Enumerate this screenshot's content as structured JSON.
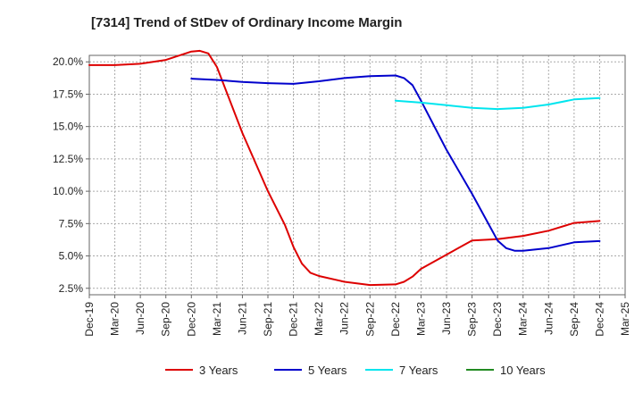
{
  "chart_data": {
    "type": "line",
    "title": "[7314]  Trend of StDev of Ordinary Income Margin",
    "xlabel": "",
    "ylabel": "",
    "x_ticks": [
      "Dec-19",
      "Mar-20",
      "Jun-20",
      "Sep-20",
      "Dec-20",
      "Mar-21",
      "Jun-21",
      "Sep-21",
      "Dec-21",
      "Mar-22",
      "Jun-22",
      "Sep-22",
      "Dec-22",
      "Mar-23",
      "Jun-23",
      "Sep-23",
      "Dec-23",
      "Mar-24",
      "Jun-24",
      "Sep-24",
      "Dec-24",
      "Mar-25"
    ],
    "y_ticks": [
      "2.5%",
      "5.0%",
      "7.5%",
      "10.0%",
      "12.5%",
      "15.0%",
      "17.5%",
      "20.0%"
    ],
    "ylim": [
      2.0,
      20.5
    ],
    "grid": true,
    "legend_position": "bottom",
    "series": [
      {
        "name": "3 Years",
        "color": "#dd0000",
        "points": [
          [
            "Dec-19",
            19.75
          ],
          [
            "Mar-20",
            19.75
          ],
          [
            "Jun-20",
            19.85
          ],
          [
            "Sep-20",
            20.15
          ],
          [
            "Dec-20",
            20.8
          ],
          [
            "Jan-21",
            20.85
          ],
          [
            "Feb-21",
            20.65
          ],
          [
            "Mar-21",
            19.6
          ],
          [
            "Jun-21",
            14.5
          ],
          [
            "Sep-21",
            10.0
          ],
          [
            "Nov-21",
            7.4
          ],
          [
            "Dec-21",
            5.7
          ],
          [
            "Jan-22",
            4.4
          ],
          [
            "Feb-22",
            3.7
          ],
          [
            "Mar-22",
            3.45
          ],
          [
            "Jun-22",
            3.0
          ],
          [
            "Sep-22",
            2.75
          ],
          [
            "Dec-22",
            2.8
          ],
          [
            "Jan-23",
            3.0
          ],
          [
            "Feb-23",
            3.4
          ],
          [
            "Mar-23",
            4.0
          ],
          [
            "Jun-23",
            5.1
          ],
          [
            "Sep-23",
            6.2
          ],
          [
            "Dec-23",
            6.3
          ],
          [
            "Mar-24",
            6.55
          ],
          [
            "Jun-24",
            6.95
          ],
          [
            "Sep-24",
            7.55
          ],
          [
            "Dec-24",
            7.7
          ]
        ]
      },
      {
        "name": "5 Years",
        "color": "#0000cc",
        "points": [
          [
            "Dec-20",
            18.7
          ],
          [
            "Mar-21",
            18.6
          ],
          [
            "Jun-21",
            18.45
          ],
          [
            "Sep-21",
            18.35
          ],
          [
            "Dec-21",
            18.3
          ],
          [
            "Mar-22",
            18.5
          ],
          [
            "Jun-22",
            18.75
          ],
          [
            "Sep-22",
            18.9
          ],
          [
            "Dec-22",
            18.95
          ],
          [
            "Jan-23",
            18.75
          ],
          [
            "Feb-23",
            18.2
          ],
          [
            "Mar-23",
            17.0
          ],
          [
            "Jun-23",
            13.2
          ],
          [
            "Sep-23",
            9.8
          ],
          [
            "Dec-23",
            6.2
          ],
          [
            "Jan-24",
            5.6
          ],
          [
            "Feb-24",
            5.4
          ],
          [
            "Mar-24",
            5.4
          ],
          [
            "Jun-24",
            5.6
          ],
          [
            "Sep-24",
            6.05
          ],
          [
            "Dec-24",
            6.15
          ]
        ]
      },
      {
        "name": "7 Years",
        "color": "#00e5ee",
        "points": [
          [
            "Dec-22",
            17.0
          ],
          [
            "Mar-23",
            16.85
          ],
          [
            "Jun-23",
            16.65
          ],
          [
            "Sep-23",
            16.45
          ],
          [
            "Dec-23",
            16.35
          ],
          [
            "Mar-24",
            16.45
          ],
          [
            "Jun-24",
            16.7
          ],
          [
            "Sep-24",
            17.1
          ],
          [
            "Dec-24",
            17.2
          ]
        ]
      },
      {
        "name": "10 Years",
        "color": "#228b22",
        "points": []
      }
    ]
  }
}
